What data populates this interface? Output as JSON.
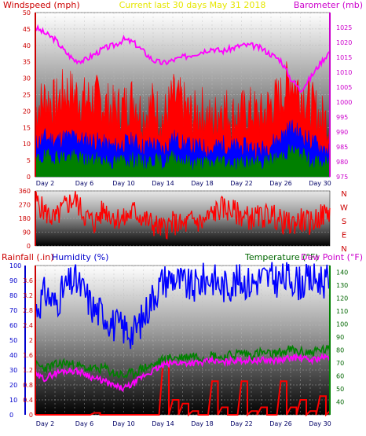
{
  "header": {
    "left_label": "Windspeed (mph)",
    "center_label": "Current last 30 days  May 31 2018",
    "right_label": "Barometer (mb)"
  },
  "colors": {
    "wind_gust": "#ff0000",
    "wind_avg": "#0000ff",
    "wind_low": "#008000",
    "barometer": "#ff00ff",
    "direction": "#ff0000",
    "humidity": "#0000ff",
    "temperature": "#008000",
    "dew_point": "#ff00ff",
    "rainfall": "#ff0000",
    "header_center": "#ffff00"
  },
  "x_axis": {
    "ticks": [
      "Day 2",
      "Day 6",
      "Day 10",
      "Day 14",
      "Day 18",
      "Day 22",
      "Day 26",
      "Day 30"
    ]
  },
  "chart_data": [
    {
      "type": "area",
      "panel": "wind-barometer",
      "title": "Current last 30 days  May 31 2018",
      "ylabel_left": "Windspeed (mph)",
      "ylabel_right": "Barometer (mb)",
      "ylim_left": [
        0,
        50
      ],
      "ylim_right": [
        975,
        1030
      ],
      "yticks_left": [
        "0",
        "5",
        "10",
        "15",
        "20",
        "25",
        "30",
        "35",
        "40",
        "45",
        "50"
      ],
      "yticks_right": [
        "975",
        "980",
        "985",
        "990",
        "995",
        "1000",
        "1005",
        "1010",
        "1015",
        "1020",
        "1025"
      ],
      "x_days": [
        1,
        2,
        3,
        4,
        5,
        6,
        7,
        8,
        9,
        10,
        11,
        12,
        13,
        14,
        15,
        16,
        17,
        18,
        19,
        20,
        21,
        22,
        23,
        24,
        25,
        26,
        27,
        28,
        29,
        30,
        31
      ],
      "series": [
        {
          "name": "Windspeed gust",
          "values": [
            20,
            24,
            22,
            26,
            25,
            23,
            24,
            22,
            20,
            21,
            24,
            18,
            22,
            17,
            24,
            22,
            18,
            20,
            16,
            22,
            18,
            19,
            20,
            18,
            22,
            24,
            30,
            26,
            22,
            18,
            16
          ]
        },
        {
          "name": "Windspeed avg",
          "values": [
            10,
            12,
            11,
            12,
            12,
            11,
            11,
            10,
            9,
            10,
            11,
            9,
            10,
            8,
            12,
            10,
            9,
            9,
            8,
            10,
            9,
            9,
            9,
            8,
            10,
            12,
            15,
            13,
            11,
            9,
            8
          ]
        },
        {
          "name": "Windspeed low",
          "values": [
            5,
            6,
            6,
            6,
            6,
            5,
            5,
            5,
            4,
            5,
            5,
            4,
            5,
            4,
            6,
            5,
            4,
            4,
            4,
            5,
            4,
            4,
            4,
            4,
            5,
            6,
            8,
            7,
            5,
            4,
            4
          ]
        },
        {
          "name": "Barometer",
          "values": [
            1025,
            1023,
            1021,
            1017,
            1014,
            1014,
            1016,
            1018,
            1019,
            1021,
            1020,
            1017,
            1014,
            1013,
            1014,
            1015,
            1016,
            1017,
            1018,
            1017,
            1018,
            1019,
            1019,
            1018,
            1016,
            1014,
            1008,
            1004,
            1008,
            1013,
            1017
          ]
        }
      ]
    },
    {
      "type": "line",
      "panel": "wind-direction",
      "ylabel_right": "Direction",
      "ylim": [
        0,
        360
      ],
      "yticks": [
        "0",
        "90",
        "180",
        "270",
        "360"
      ],
      "compass_labels": [
        "N",
        "W",
        "S",
        "E",
        "N"
      ],
      "x_days": [
        1,
        2,
        3,
        4,
        5,
        6,
        7,
        8,
        9,
        10,
        11,
        12,
        13,
        14,
        15,
        16,
        17,
        18,
        19,
        20,
        21,
        22,
        23,
        24,
        25,
        26,
        27,
        28,
        29,
        30,
        31
      ],
      "series": [
        {
          "name": "Wind direction",
          "values": [
            300,
            220,
            170,
            260,
            310,
            200,
            150,
            240,
            190,
            170,
            230,
            180,
            140,
            110,
            150,
            130,
            170,
            150,
            210,
            250,
            230,
            200,
            180,
            190,
            210,
            160,
            140,
            170,
            150,
            190,
            230
          ]
        }
      ]
    },
    {
      "type": "line",
      "panel": "humidity-temperature-rain",
      "ylabel_left": "Rainfall (.in)",
      "ylabel_left2": "Humidity (%)",
      "ylabel_right": "Temperature (°F)",
      "ylabel_right2": "Dew Point (°F)",
      "ylim_rain": [
        0,
        4
      ],
      "ylim_humidity": [
        0,
        100
      ],
      "ylim_temp": [
        30,
        145
      ],
      "yticks_rain": [
        "0",
        "0.4",
        "0.8",
        "1.2",
        "1.6",
        "2",
        "2.4",
        "2.8",
        "3.2",
        "3.6"
      ],
      "yticks_humidity": [
        "0",
        "10",
        "20",
        "30",
        "40",
        "50",
        "60",
        "70",
        "80",
        "90",
        "100"
      ],
      "yticks_temp": [
        "40",
        "50",
        "60",
        "70",
        "80",
        "90",
        "100",
        "110",
        "120",
        "130",
        "140"
      ],
      "x_days": [
        1,
        2,
        3,
        4,
        5,
        6,
        7,
        8,
        9,
        10,
        11,
        12,
        13,
        14,
        15,
        16,
        17,
        18,
        19,
        20,
        21,
        22,
        23,
        24,
        25,
        26,
        27,
        28,
        29,
        30,
        31
      ],
      "series": [
        {
          "name": "Humidity",
          "values": [
            70,
            82,
            74,
            85,
            90,
            82,
            70,
            68,
            60,
            58,
            55,
            65,
            80,
            90,
            92,
            88,
            85,
            90,
            92,
            86,
            88,
            90,
            88,
            92,
            91,
            90,
            92,
            88,
            90,
            91,
            88
          ]
        },
        {
          "name": "Temperature",
          "values": [
            68,
            66,
            68,
            70,
            68,
            66,
            65,
            66,
            62,
            60,
            62,
            66,
            68,
            72,
            74,
            74,
            76,
            74,
            76,
            74,
            76,
            78,
            76,
            78,
            76,
            78,
            80,
            78,
            78,
            80,
            80
          ]
        },
        {
          "name": "Dew Point",
          "values": [
            60,
            58,
            62,
            64,
            64,
            62,
            58,
            56,
            52,
            50,
            54,
            60,
            64,
            68,
            70,
            70,
            70,
            70,
            72,
            70,
            72,
            72,
            72,
            72,
            72,
            72,
            74,
            74,
            72,
            74,
            74
          ]
        },
        {
          "name": "Rainfall",
          "values": [
            0,
            0,
            0,
            0,
            0,
            0,
            0.05,
            0,
            0,
            0,
            0,
            0,
            0,
            1.4,
            0.4,
            0.3,
            0.1,
            0,
            0.9,
            0.2,
            0,
            0.9,
            0.1,
            0.2,
            0,
            0.9,
            0.2,
            0.4,
            0.1,
            0.5,
            0.1
          ]
        }
      ]
    }
  ]
}
